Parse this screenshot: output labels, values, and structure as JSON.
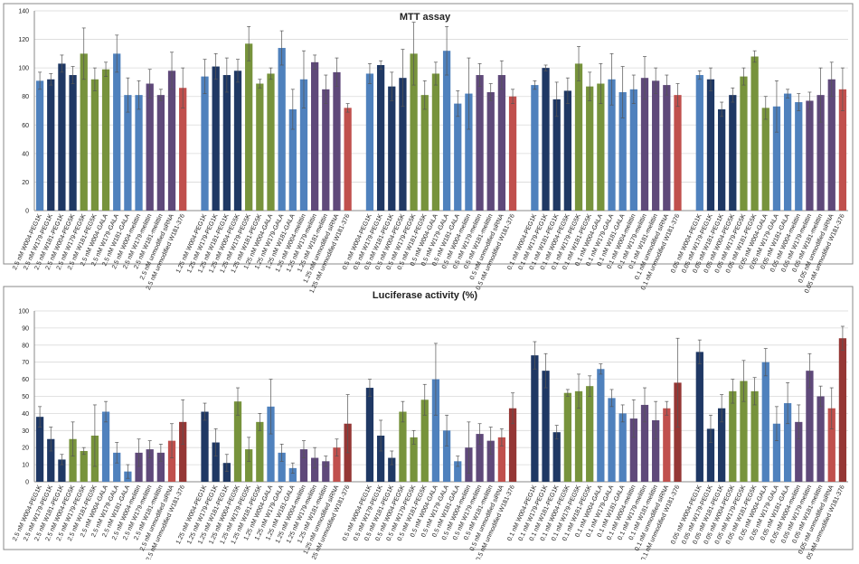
{
  "chart_data": [
    {
      "type": "bar",
      "title": "MTT assay",
      "categories": [
        "2.5 nM W004-PEG1K",
        "2.5 nM W179-PEG1K",
        "2.5 nM W181-PEG1K",
        "2.5 nM W004-PEG5K",
        "2.5 nM W179-PEG5K",
        "2.5 nM W181-PEG5K",
        "2.5 nM W004-GALA",
        "2.5 nM W179-GALA",
        "2.5 nM W181-GALA",
        "2.5 nM W004-melittin",
        "2.5 nM W179-melittin",
        "2.5 nM W181-melittin",
        "2.5 nM unmodified siRNA",
        "2.5 nM unmodified W181-376",
        null,
        "1.25 nM W004-PEG1K",
        "1.25 nM W179-PEG1K",
        "1.25 nM W181-PEG1K",
        "1.25 nM W004-PEG5K",
        "1.25 nM W179-PEG5K",
        "1.25 nM W181-PEG5K",
        "1.25 nM W004-GALA",
        "1.25 nM W179-GALA",
        "1.25 nM W181-GALA",
        "1.25 nM W004-melittin",
        "1.25 nM W179-melittin",
        "1.25 nM W181-melittin",
        "1.25 nM unmodified siRNA",
        "1.25 nM unmodified W181-376",
        null,
        "0.5 nM W004-PEG1K",
        "0.5 nM W179-PEG1K",
        "0.5 nM W181-PEG1K",
        "0.5 nM W004-PEG5K",
        "0.5 nM W179-PEG5K",
        "0.5 nM W181-PEG5K",
        "0.5 nM W004-GALA",
        "0.5 nM W179-GALA",
        "0.5 nM W181-GALA",
        "0.5 nM W004-melittin",
        "0.5 nM W179-melittin",
        "0.5 nM W181-melittin",
        "0.5 nM unmodified siRNA",
        "0.5 nM unmodified W181-376",
        null,
        "0.1 nM W004-PEG1K",
        "0.1 nM W179-PEG1K",
        "0.1 nM W181-PEG1K",
        "0.1 nM W004-PEG5K",
        "0.1 nM W179-PEG5K",
        "0.1 nM W181-PEG5K",
        "0.1 nM W004-GALA",
        "0.1 nM W179-GALA",
        "0.1 nM W181-GALA",
        "0.1 nM W004-melittin",
        "0.1 nM W179-melittin",
        "0.1 nM W181-melittin",
        "0.1 nM unmodified siRNA",
        "0.1 nM unmodified W181-376",
        null,
        "0.05 nM W004-PEG1K",
        "0.05 nM W179-PEG1K",
        "0.05 nM W181-PEG1K",
        "0.05 nM W004-PEG5K",
        "0.05 nM W179-PEG5K",
        "0.05 nM W181-PEG5K",
        "0.05 nM W004-GALA",
        "0.05 nM W179-GALA",
        "0.05 nM W181-GALA",
        "0.05 nM W004-melittin",
        "0.05 nM W179-melittin",
        "0.05 nM W181-melittin",
        "0.05 nM unmodified siRNA",
        "0.05 nM unmodified W181-376"
      ],
      "values": [
        91,
        92,
        103,
        95,
        110,
        92,
        99,
        110,
        81,
        81,
        89,
        81,
        98,
        86,
        null,
        94,
        101,
        95,
        98,
        117,
        89,
        96,
        114,
        71,
        92,
        104,
        85,
        97,
        72,
        null,
        96,
        102,
        87,
        93,
        110,
        81,
        96,
        112,
        75,
        82,
        95,
        83,
        95,
        80,
        null,
        88,
        100,
        78,
        84,
        103,
        87,
        89,
        92,
        83,
        85,
        93,
        91,
        88,
        81,
        null,
        95,
        92,
        71,
        81,
        94,
        108,
        72,
        73,
        82,
        76,
        77,
        81,
        92,
        85
      ],
      "errors": [
        6,
        4,
        6,
        6,
        18,
        8,
        5,
        13,
        12,
        10,
        10,
        4,
        13,
        14,
        null,
        12,
        9,
        12,
        8,
        12,
        3,
        4,
        12,
        14,
        20,
        5,
        10,
        10,
        3,
        null,
        7,
        3,
        10,
        20,
        22,
        10,
        8,
        17,
        9,
        25,
        8,
        6,
        10,
        5,
        null,
        3,
        2,
        12,
        9,
        12,
        10,
        14,
        18,
        18,
        10,
        15,
        9,
        7,
        8,
        null,
        3,
        8,
        5,
        5,
        6,
        4,
        8,
        18,
        3,
        6,
        6,
        19,
        12,
        15
      ],
      "colors": [
        "#4f81bd",
        "#1f3864",
        "#1f3864",
        "#1f3864",
        "#77933c",
        "#77933c",
        "#77933c",
        "#4f81bd",
        "#4f81bd",
        "#4f81bd",
        "#5f497a",
        "#5f497a",
        "#5f497a",
        "#c0504d",
        null,
        "#4f81bd",
        "#1f3864",
        "#1f3864",
        "#1f3864",
        "#77933c",
        "#77933c",
        "#77933c",
        "#4f81bd",
        "#4f81bd",
        "#4f81bd",
        "#5f497a",
        "#5f497a",
        "#5f497a",
        "#c0504d",
        null,
        "#4f81bd",
        "#1f3864",
        "#1f3864",
        "#1f3864",
        "#77933c",
        "#77933c",
        "#77933c",
        "#4f81bd",
        "#4f81bd",
        "#4f81bd",
        "#5f497a",
        "#5f497a",
        "#5f497a",
        "#c0504d",
        null,
        "#4f81bd",
        "#1f3864",
        "#1f3864",
        "#1f3864",
        "#77933c",
        "#77933c",
        "#77933c",
        "#4f81bd",
        "#4f81bd",
        "#4f81bd",
        "#5f497a",
        "#5f497a",
        "#5f497a",
        "#c0504d",
        null,
        "#4f81bd",
        "#1f3864",
        "#1f3864",
        "#1f3864",
        "#77933c",
        "#77933c",
        "#77933c",
        "#4f81bd",
        "#4f81bd",
        "#4f81bd",
        "#5f497a",
        "#5f497a",
        "#5f497a",
        "#c0504d"
      ],
      "ylim": [
        0,
        140
      ],
      "yticks": [
        0,
        20,
        40,
        60,
        80,
        100,
        120,
        140
      ],
      "grid": true
    },
    {
      "type": "bar",
      "title": "Luciferase activity (%)",
      "categories": [
        "2.5 nM W004-PEG1K",
        "2.5 nM W179-PEG1K",
        "2.5 nM W181-PEG1K",
        "2.5 nM W004-PEG5K",
        "2.5 nM W179-PEG5K",
        "2.5 nM W181-PEG5K",
        "2.5 nM W004-GALA",
        "2.5 nM W179-GALA",
        "2.5 nM W181-GALA",
        "2.5 nM W004-melittin",
        "2.5 nM W179-melittin",
        "2.5 nM W181-melittin",
        "2.5 nM unmodified siRNA",
        "2.5 nM unmodified W181-376",
        null,
        "1.25 nM W004-PEG1K",
        "1.25 nM W179-PEG1K",
        "1.25 nM W181-PEG1K",
        "1.25 nM W004-PEG5K",
        "1.25 nM W179-PEG5K",
        "1.25 nM W181-PEG5K",
        "1.25 nM W004-GALA",
        "1.25 nM W179-GALA",
        "1.25 nM W181-GALA",
        "1.25 nM W004-melittin",
        "1.25 nM W179-melittin",
        "1.25 nM W181-melittin",
        "1.25 nM unmodified siRNA",
        "1.25 nM unmodified W181-376",
        null,
        "0.5 nM W004-PEG1K",
        "0.5 nM W179-PEG1K",
        "0.5 nM W181-PEG1K",
        "0.5 nM W004-PEG5K",
        "0.5 nM W179-PEG5K",
        "0.5 nM W181-PEG5K",
        "0.5 nM W004-GALA",
        "0.5 nM W179-GALA",
        "0.5 nM W181-GALA",
        "0.5 nM W004-melittin",
        "0.5 nM W179-melittin",
        "0.5 nM W181-melittin",
        "0.5 nM unmodified siRNA",
        "0.5 nM unmodified W181-376",
        null,
        "0.1 nM W004-PEG1K",
        "0.1 nM W179-PEG1K",
        "0.1 nM W181-PEG1K",
        "0.1 nM W004-PEG5K",
        "0.1 nM W179-PEG5K",
        "0.1 nM W181-PEG5K",
        "0.1 nM W004-GALA",
        "0.1 nM W179-GALA",
        "0.1 nM W181-GALA",
        "0.1 nM W004-melittin",
        "0.1 nM W179-melittin",
        "0.1 nM W181-melittin",
        "0.1 nM unmodified siRNA",
        "0.1 nM unmodified W181-376",
        null,
        "0.05 nM W004-PEG1K",
        "0.05 nM W179-PEG1K",
        "0.05 nM W181-PEG1K",
        "0.05 nM W004-PEG5K",
        "0.05 nM W179-PEG5K",
        "0.05 nM W181-PEG5K",
        "0.05 nM W004-GALA",
        "0.05 nM W179-GALA",
        "0.05 nM W181-GALA",
        "0.05 nM W004-melittin",
        "0.05 nM W179-melittin",
        "0.05 nM W181-melittin",
        "0.05 nM unmodified siRNA",
        "0.05 nM unmodified W181-376"
      ],
      "values": [
        38,
        25,
        13,
        25,
        18,
        27,
        41,
        17,
        6,
        17,
        19,
        17,
        24,
        35,
        null,
        41,
        23,
        11,
        47,
        19,
        35,
        44,
        17,
        8,
        19,
        14,
        12,
        20,
        34,
        null,
        55,
        27,
        14,
        41,
        26,
        48,
        60,
        30,
        12,
        20,
        28,
        24,
        26,
        43,
        null,
        74,
        65,
        29,
        52,
        53,
        56,
        66,
        49,
        40,
        37,
        45,
        36,
        43,
        58,
        null,
        76,
        31,
        43,
        53,
        59,
        53,
        70,
        34,
        46,
        35,
        65,
        50,
        43,
        84
      ],
      "errors": [
        6,
        7,
        3,
        10,
        2,
        18,
        6,
        6,
        4,
        8,
        5,
        5,
        10,
        13,
        null,
        5,
        8,
        5,
        8,
        7,
        5,
        16,
        5,
        3,
        5,
        6,
        3,
        5,
        17,
        null,
        5,
        9,
        4,
        6,
        4,
        9,
        21,
        9,
        3,
        15,
        6,
        8,
        5,
        9,
        null,
        8,
        10,
        4,
        2,
        10,
        6,
        3,
        5,
        5,
        11,
        10,
        11,
        4,
        26,
        null,
        7,
        8,
        8,
        7,
        12,
        8,
        8,
        10,
        12,
        10,
        10,
        6,
        12,
        7
      ],
      "colors": [
        "#1f3864",
        "#1f3864",
        "#1f3864",
        "#77933c",
        "#77933c",
        "#77933c",
        "#4f81bd",
        "#4f81bd",
        "#4f81bd",
        "#5f497a",
        "#5f497a",
        "#5f497a",
        "#c0504d",
        "#953735",
        null,
        "#1f3864",
        "#1f3864",
        "#1f3864",
        "#77933c",
        "#77933c",
        "#77933c",
        "#4f81bd",
        "#4f81bd",
        "#4f81bd",
        "#5f497a",
        "#5f497a",
        "#5f497a",
        "#c0504d",
        "#953735",
        null,
        "#1f3864",
        "#1f3864",
        "#1f3864",
        "#77933c",
        "#77933c",
        "#77933c",
        "#4f81bd",
        "#4f81bd",
        "#4f81bd",
        "#5f497a",
        "#5f497a",
        "#5f497a",
        "#c0504d",
        "#953735",
        null,
        "#1f3864",
        "#1f3864",
        "#1f3864",
        "#77933c",
        "#77933c",
        "#77933c",
        "#4f81bd",
        "#4f81bd",
        "#4f81bd",
        "#5f497a",
        "#5f497a",
        "#5f497a",
        "#c0504d",
        "#953735",
        null,
        "#1f3864",
        "#1f3864",
        "#1f3864",
        "#77933c",
        "#77933c",
        "#77933c",
        "#4f81bd",
        "#4f81bd",
        "#4f81bd",
        "#5f497a",
        "#5f497a",
        "#5f497a",
        "#c0504d",
        "#953735"
      ],
      "ylim": [
        0,
        100
      ],
      "yticks": [
        0,
        10,
        20,
        30,
        40,
        50,
        60,
        70,
        80,
        90,
        100
      ],
      "grid": true
    }
  ]
}
